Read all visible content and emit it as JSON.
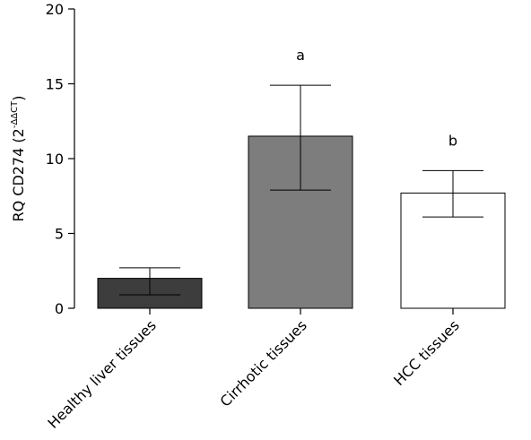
{
  "chart_data": {
    "type": "bar",
    "categories": [
      "Healthy liver tissues",
      "Cirrhotic tissues",
      "HCC tissues"
    ],
    "values": [
      2.0,
      11.5,
      7.7
    ],
    "error_low": [
      0.9,
      7.9,
      6.1
    ],
    "error_high": [
      2.7,
      14.9,
      9.2
    ],
    "annotations": [
      "",
      "a",
      "b"
    ],
    "bar_colors": [
      "#3d3d3d",
      "#7d7d7d",
      "#ffffff"
    ],
    "ylabel_main": "RQ CD274 (2",
    "ylabel_sup": "-ΔΔCT",
    "ylabel_end": ")",
    "ylim": [
      0,
      20
    ],
    "yticks": [
      "0",
      "5",
      "10",
      "15",
      "20"
    ],
    "grid": false
  }
}
